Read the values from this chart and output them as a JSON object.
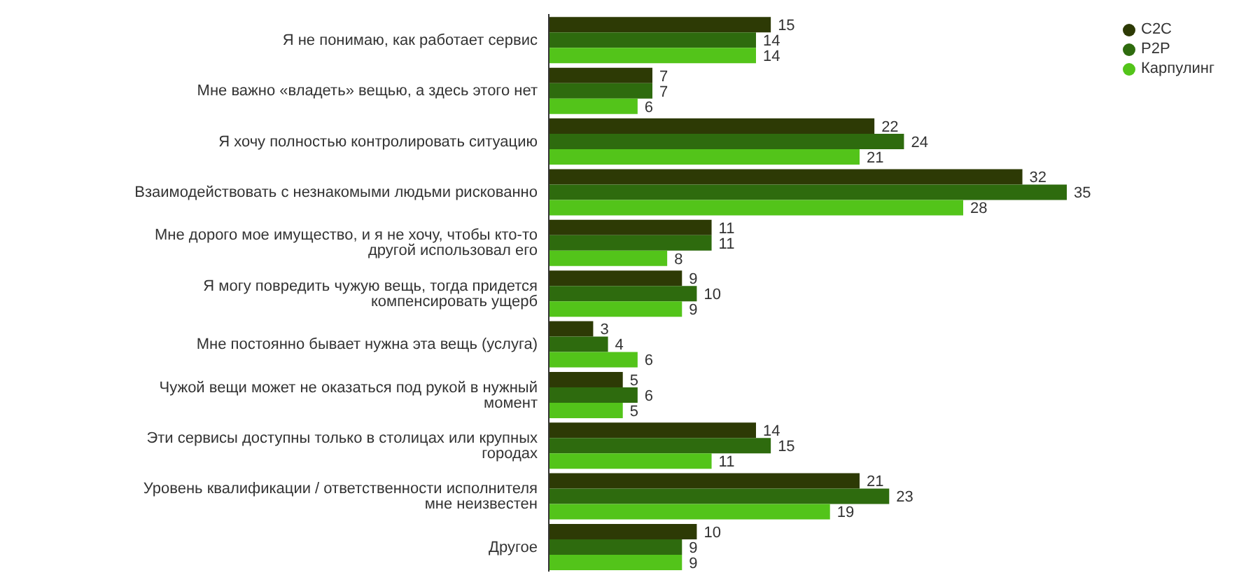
{
  "chart_data": {
    "type": "bar",
    "orientation": "horizontal",
    "categories": [
      "Я не понимаю, как работает сервис",
      "Мне важно «владеть» вещью, а здесь этого нет",
      "Я хочу полностью контролировать ситуацию",
      "Взаимодействовать с незнакомыми людьми рискованно",
      "Мне дорого мое имущество, и я не хочу, чтобы кто-то другой использовал его",
      "Я могу повредить чужую вещь, тогда придется компенсировать ущерб",
      "Мне постоянно бывает нужна эта вещь (услуга)",
      "Чужой вещи может не оказаться под рукой в нужный момент",
      "Эти сервисы доступны только в столицах или крупных городах",
      "Уровень квалификации / ответственности исполнителя мне неизвестен",
      "Другое"
    ],
    "series": [
      {
        "name": "C2C",
        "color": "#2d3a05",
        "values": [
          15,
          7,
          22,
          32,
          11,
          9,
          3,
          5,
          14,
          21,
          10
        ]
      },
      {
        "name": "P2P",
        "color": "#2e6b0e",
        "values": [
          14,
          7,
          24,
          35,
          11,
          10,
          4,
          6,
          15,
          23,
          9
        ]
      },
      {
        "name": "Карпулинг",
        "color": "#53c41a",
        "values": [
          14,
          6,
          21,
          28,
          8,
          9,
          6,
          5,
          11,
          19,
          9
        ]
      }
    ],
    "data_labels": true,
    "legend": "top right",
    "tick_labels": "y",
    "grid": false
  }
}
